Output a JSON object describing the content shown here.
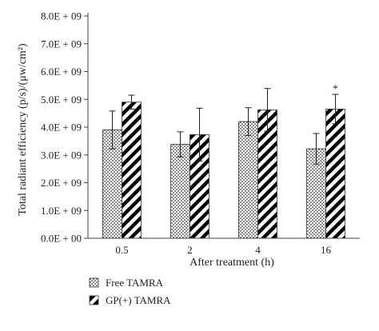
{
  "chart_data": {
    "type": "bar",
    "title": "",
    "xlabel": "After treatment (h)",
    "ylabel": "Total radiant efficiency (p/s)/(μw/cm²)",
    "categories": [
      "0.5",
      "2",
      "4",
      "16"
    ],
    "y_ticks": [
      "0.0E + 00",
      "1.0E + 09",
      "2.0E + 09",
      "3.0E + 09",
      "4.0E + 09",
      "5.0E + 09",
      "6.0E + 09",
      "7.0E + 09",
      "8.0E + 09"
    ],
    "ylim": [
      0,
      8000000000
    ],
    "grid": false,
    "legend_position": "bottom-left",
    "series": [
      {
        "name": "Free TAMRA",
        "pattern": "dots",
        "values": [
          3900000000,
          3380000000,
          4200000000,
          3220000000
        ],
        "errors": [
          680000000,
          450000000,
          500000000,
          550000000
        ]
      },
      {
        "name": "GP(+) TAMRA",
        "pattern": "diagonal-stripes",
        "values": [
          4900000000,
          3730000000,
          4620000000,
          4650000000
        ],
        "errors": [
          250000000,
          950000000,
          770000000,
          530000000
        ]
      }
    ],
    "annotations": [
      {
        "text": "*",
        "category": "16",
        "series": "GP(+) TAMRA"
      }
    ],
    "colors": {
      "bar_fill": "#ffffff",
      "pattern": "#000000",
      "axis": "#444444"
    }
  }
}
